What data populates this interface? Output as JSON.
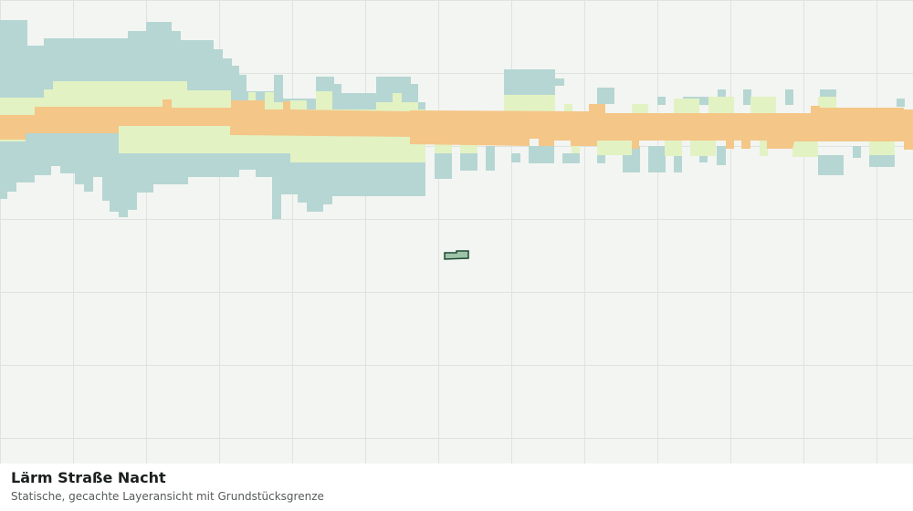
{
  "header": {
    "title": "Lärm Straße Nacht",
    "subtitle": "Statische, gecachte Layeransicht mit Grundstücksgrenze"
  }
}
